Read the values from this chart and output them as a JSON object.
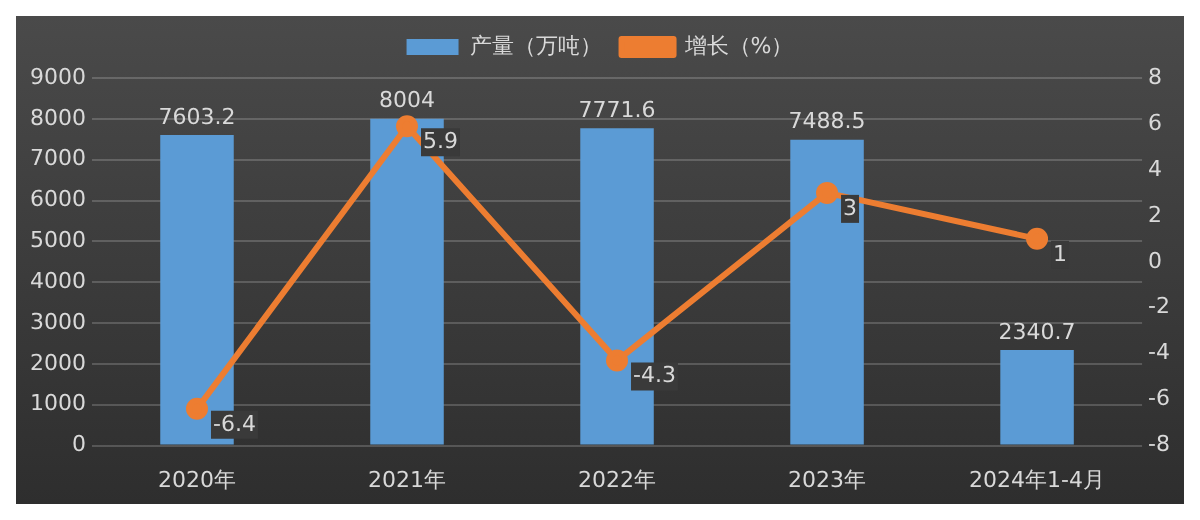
{
  "chart_data": {
    "type": "bar",
    "categories": [
      "2020年",
      "2021年",
      "2022年",
      "2023年",
      "2024年1-4月"
    ],
    "series": [
      {
        "name": "产量（万吨）",
        "color": "#5b9bd5",
        "values": [
          7603.2,
          8004,
          7771.6,
          7488.5,
          2340.7
        ]
      },
      {
        "name": "增长（%）",
        "type": "line",
        "axis": "y2",
        "color": "#ed7d31",
        "values": [
          -6.4,
          5.9,
          -4.3,
          3,
          1
        ]
      }
    ],
    "ylim": [
      0,
      9000
    ],
    "yticks": [
      0,
      1000,
      2000,
      3000,
      4000,
      5000,
      6000,
      7000,
      8000,
      9000
    ],
    "y2lim": [
      -8,
      8
    ],
    "y2ticks": [
      -8,
      -6,
      -4,
      -2,
      0,
      2,
      4,
      6,
      8
    ],
    "grid": "y",
    "legend": "top",
    "data_labels": true,
    "marker": "circle",
    "line_style": "solid"
  }
}
